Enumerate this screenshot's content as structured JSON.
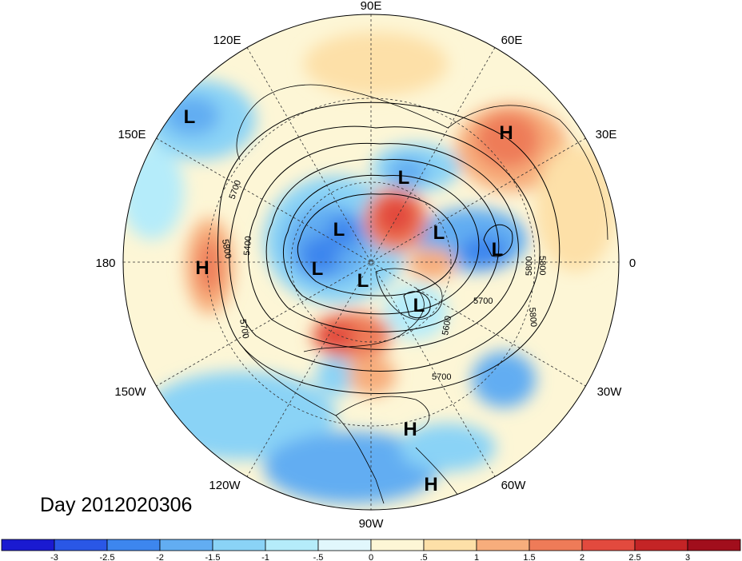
{
  "title": "Day 2012020306",
  "longitude_labels": {
    "lon_90E": "90E",
    "lon_120E": "120E",
    "lon_60E": "60E",
    "lon_150E": "150E",
    "lon_30E": "30E",
    "lon_180": "180",
    "lon_0": "0",
    "lon_150W": "150W",
    "lon_30W": "30W",
    "lon_120W": "120W",
    "lon_60W": "60W",
    "lon_90W": "90W"
  },
  "pressure_centers": [
    "L",
    "H",
    "H",
    "L",
    "L",
    "L",
    "L",
    "L",
    "L",
    "L",
    "H",
    "H"
  ],
  "contour_labels": [
    "5700",
    "5800",
    "5400",
    "5700",
    "5800",
    "5800",
    "5700",
    "5600",
    "5800",
    "5700"
  ],
  "colorbar": {
    "labels": [
      "-3",
      "-2.5",
      "-2",
      "-1.5",
      "-1",
      "-.5",
      "0",
      ".5",
      "1",
      "1.5",
      "2",
      "2.5",
      "3"
    ],
    "colors": [
      "#1a1ad1",
      "#2a57e6",
      "#3d86ee",
      "#62adf2",
      "#8ad3f6",
      "#b5ecfa",
      "#e1f7fc",
      "#fdf6d6",
      "#fde0a8",
      "#f7ad7c",
      "#ee7b58",
      "#e24a3e",
      "#c42426",
      "#a10e1c"
    ]
  }
}
